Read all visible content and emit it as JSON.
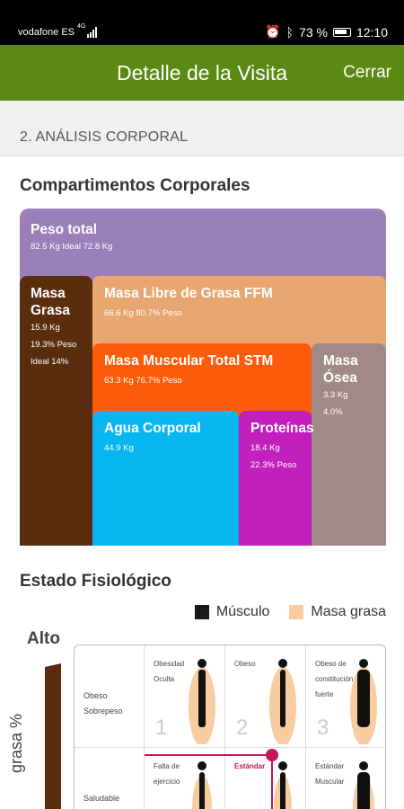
{
  "status_bar": {
    "carrier": "vodafone ES",
    "network": "4G",
    "battery": "73 %",
    "time": "12:10"
  },
  "app_bar": {
    "title": "Detalle de la Visita",
    "close_label": "Cerrar"
  },
  "section": {
    "title": "2. ANÁLISIS CORPORAL"
  },
  "compartments": {
    "title": "Compartimentos Corporales",
    "peso_total": {
      "label": "Peso total",
      "detail": "82.5 Kg Ideal 72.8 Kg",
      "color": "#9b7fb8"
    },
    "masa_grasa": {
      "label1": "Masa",
      "label2": "Grasa",
      "d1": "15.9 Kg",
      "d2": "19.3% Peso",
      "d3": "Ideal 14%",
      "color": "#5a2d0f"
    },
    "masa_libre": {
      "label": "Masa Libre de Grasa FFM",
      "detail": "66.6 Kg 80.7% Peso",
      "color": "#e8a770"
    },
    "masa_muscular": {
      "label": "Masa Muscular Total STM",
      "detail": "63.3 Kg 76.7% Peso",
      "color": "#fb5b0a"
    },
    "masa_osea": {
      "label1": "Masa",
      "label2": "Ósea",
      "d1": "3.3 Kg",
      "d2": "4.0%",
      "color": "#a08a86"
    },
    "agua": {
      "label": "Agua Corporal",
      "detail": "44.9 Kg",
      "color": "#08b7f2"
    },
    "proteinas": {
      "label": "Proteínas",
      "d1": "18.4 Kg",
      "d2": "22.3% Peso",
      "color": "#c21fbd"
    }
  },
  "physio": {
    "title": "Estado Fisiológico",
    "legend": [
      {
        "label": "Músculo",
        "color": "#1a1a1a"
      },
      {
        "label": "Masa grasa",
        "color": "#f8cba0"
      }
    ],
    "y_high": "Alto",
    "y_label": "grasa %",
    "rows": [
      {
        "label1": "Obeso",
        "label2": "Sobrepeso"
      },
      {
        "label1": "Saludable",
        "label2": ""
      }
    ],
    "cells_row1": [
      {
        "l1": "Obesidad",
        "l2": "Oculta",
        "n": "1"
      },
      {
        "l1": "Obeso",
        "l2": "",
        "n": "2"
      },
      {
        "l1": "Obeso de",
        "l2": "constitución",
        "l3": "fuerte",
        "n": "3"
      }
    ],
    "cells_row2": [
      {
        "l1": "Falta de",
        "l2": "ejercicio"
      },
      {
        "l1": "Estándar",
        "l2": ""
      },
      {
        "l1": "Estándar",
        "l2": "Muscular"
      }
    ],
    "accent": "#c2185b"
  }
}
